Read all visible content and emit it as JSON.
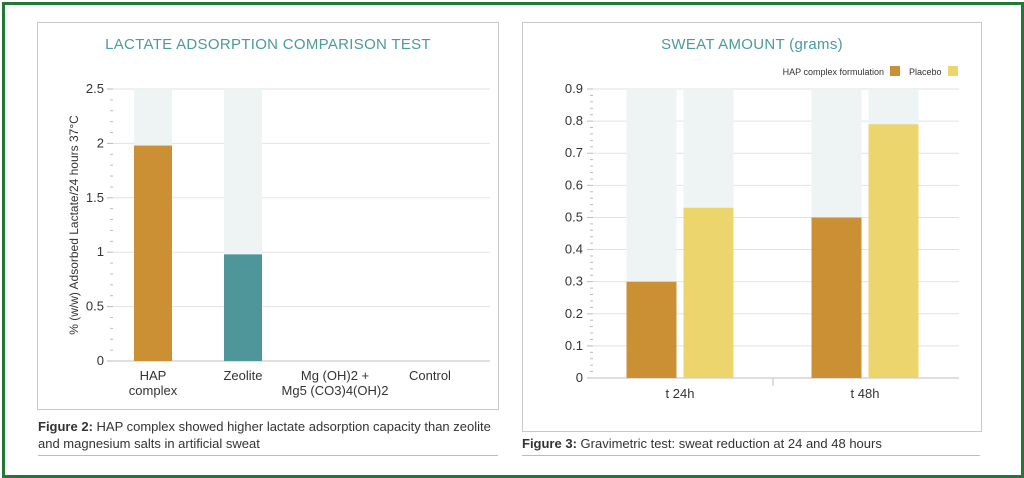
{
  "chart_data": [
    {
      "type": "bar",
      "title": "LACTATE ADSORPTION COMPARISON TEST",
      "ylabel": "% (w/w) Adsorbed Lactate/24 hours 37°C",
      "xlabel": "",
      "ylim": [
        0,
        2.5
      ],
      "yticks": [
        "0",
        "0.5",
        "1",
        "1.5",
        "2",
        "2.5"
      ],
      "categories": [
        [
          "HAP",
          "complex"
        ],
        [
          "Zeolite"
        ],
        [
          "Mg (OH)2 +",
          "Mg5 (CO3)4(OH)2"
        ],
        [
          "Control"
        ]
      ],
      "values": [
        1.98,
        0.98,
        0,
        0
      ],
      "colors": [
        "#cc9034",
        "#4e9699",
        "#cc9034",
        "#cc9034"
      ],
      "background_bar_color": "#eef3f4",
      "grid": true,
      "caption": {
        "label": "Figure 2:",
        "text": " HAP complex showed higher lactate adsorption capacity than zeolite and magnesium salts in artificial sweat"
      }
    },
    {
      "type": "bar",
      "title": "SWEAT AMOUNT (grams)",
      "xlabel": "",
      "ylabel": "",
      "ylim": [
        0,
        0.9
      ],
      "yticks": [
        "0",
        "0.1",
        "0.2",
        "0.3",
        "0.4",
        "0.5",
        "0.6",
        "0.7",
        "0.8",
        "0.9"
      ],
      "categories": [
        "t 24h",
        "t 48h"
      ],
      "series": [
        {
          "name": "HAP complex formulation",
          "values": [
            0.3,
            0.5
          ],
          "color": "#cc9034"
        },
        {
          "name": "Placebo",
          "values": [
            0.53,
            0.79
          ],
          "color": "#ecd56c"
        }
      ],
      "legend": "top-right",
      "background_bar_color": "#eef3f4",
      "grid": true,
      "caption": {
        "label": "Figure 3:",
        "text": " Gravimetric test: sweat reduction at 24 and 48 hours"
      }
    }
  ]
}
